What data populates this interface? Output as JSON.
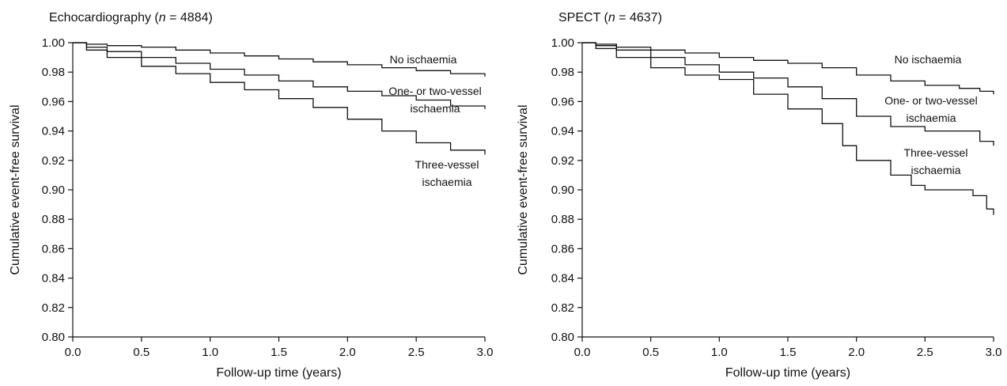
{
  "chart_data": [
    {
      "type": "line",
      "title_parts": [
        "Echocardiography (",
        "n",
        " = 4884)"
      ],
      "xlabel": "Follow-up time (years)",
      "ylabel": "Cumulative event-free survival",
      "xlim": [
        0,
        3
      ],
      "ylim": [
        0.8,
        1.0
      ],
      "x_ticks": [
        "0.0",
        "0.5",
        "1.0",
        "1.5",
        "2.0",
        "2.5",
        "3.0"
      ],
      "y_ticks": [
        "0.80",
        "0.82",
        "0.84",
        "0.86",
        "0.88",
        "0.90",
        "0.92",
        "0.94",
        "0.96",
        "0.98",
        "1.00"
      ],
      "grid": false,
      "series": [
        {
          "label_lines": [
            "No ischaemia"
          ],
          "points": [
            [
              0,
              1.0
            ],
            [
              0.1,
              0.999
            ],
            [
              0.25,
              0.998
            ],
            [
              0.5,
              0.997
            ],
            [
              0.75,
              0.995
            ],
            [
              1.0,
              0.993
            ],
            [
              1.25,
              0.991
            ],
            [
              1.5,
              0.989
            ],
            [
              1.75,
              0.987
            ],
            [
              2.0,
              0.985
            ],
            [
              2.25,
              0.983
            ],
            [
              2.5,
              0.981
            ],
            [
              2.75,
              0.979
            ],
            [
              3.0,
              0.977
            ]
          ]
        },
        {
          "label_lines": [
            "One- or two-vessel",
            "ischaemia"
          ],
          "points": [
            [
              0,
              1.0
            ],
            [
              0.1,
              0.997
            ],
            [
              0.25,
              0.994
            ],
            [
              0.5,
              0.99
            ],
            [
              0.75,
              0.986
            ],
            [
              1.0,
              0.982
            ],
            [
              1.25,
              0.978
            ],
            [
              1.5,
              0.974
            ],
            [
              1.75,
              0.97
            ],
            [
              2.0,
              0.967
            ],
            [
              2.25,
              0.964
            ],
            [
              2.5,
              0.961
            ],
            [
              2.75,
              0.957
            ],
            [
              3.0,
              0.955
            ]
          ]
        },
        {
          "label_lines": [
            "Three-vessel",
            "ischaemia"
          ],
          "points": [
            [
              0,
              1.0
            ],
            [
              0.1,
              0.995
            ],
            [
              0.25,
              0.99
            ],
            [
              0.5,
              0.984
            ],
            [
              0.75,
              0.979
            ],
            [
              1.0,
              0.973
            ],
            [
              1.25,
              0.968
            ],
            [
              1.5,
              0.962
            ],
            [
              1.75,
              0.956
            ],
            [
              2.0,
              0.948
            ],
            [
              2.25,
              0.94
            ],
            [
              2.5,
              0.932
            ],
            [
              2.75,
              0.927
            ],
            [
              3.0,
              0.924
            ]
          ]
        }
      ]
    },
    {
      "type": "line",
      "title_parts": [
        "SPECT (",
        "n",
        " = 4637)"
      ],
      "xlabel": "Follow-up time (years)",
      "ylabel": "Cumulative event-free survival",
      "xlim": [
        0,
        3
      ],
      "ylim": [
        0.8,
        1.0
      ],
      "x_ticks": [
        "0.0",
        "0.5",
        "1.0",
        "1.5",
        "2.0",
        "2.5",
        "3.0"
      ],
      "y_ticks": [
        "0.80",
        "0.82",
        "0.84",
        "0.86",
        "0.88",
        "0.90",
        "0.92",
        "0.94",
        "0.96",
        "0.98",
        "1.00"
      ],
      "grid": false,
      "series": [
        {
          "label_lines": [
            "No ischaemia"
          ],
          "points": [
            [
              0,
              1.0
            ],
            [
              0.1,
              0.999
            ],
            [
              0.25,
              0.997
            ],
            [
              0.5,
              0.995
            ],
            [
              0.75,
              0.993
            ],
            [
              1.0,
              0.99
            ],
            [
              1.25,
              0.988
            ],
            [
              1.5,
              0.986
            ],
            [
              1.75,
              0.983
            ],
            [
              2.0,
              0.978
            ],
            [
              2.25,
              0.974
            ],
            [
              2.5,
              0.971
            ],
            [
              2.75,
              0.969
            ],
            [
              2.9,
              0.967
            ],
            [
              3.0,
              0.965
            ]
          ]
        },
        {
          "label_lines": [
            "One- or two-vessel",
            "ischaemia"
          ],
          "points": [
            [
              0,
              1.0
            ],
            [
              0.1,
              0.998
            ],
            [
              0.25,
              0.995
            ],
            [
              0.5,
              0.99
            ],
            [
              0.75,
              0.985
            ],
            [
              1.0,
              0.98
            ],
            [
              1.25,
              0.976
            ],
            [
              1.5,
              0.97
            ],
            [
              1.75,
              0.962
            ],
            [
              2.0,
              0.95
            ],
            [
              2.25,
              0.943
            ],
            [
              2.5,
              0.94
            ],
            [
              2.75,
              0.94
            ],
            [
              2.9,
              0.933
            ],
            [
              3.0,
              0.93
            ]
          ]
        },
        {
          "label_lines": [
            "Three-vessel",
            "ischaemia"
          ],
          "points": [
            [
              0,
              1.0
            ],
            [
              0.1,
              0.996
            ],
            [
              0.25,
              0.99
            ],
            [
              0.5,
              0.983
            ],
            [
              0.75,
              0.978
            ],
            [
              1.0,
              0.975
            ],
            [
              1.25,
              0.965
            ],
            [
              1.5,
              0.955
            ],
            [
              1.75,
              0.945
            ],
            [
              1.9,
              0.93
            ],
            [
              2.0,
              0.92
            ],
            [
              2.25,
              0.91
            ],
            [
              2.4,
              0.903
            ],
            [
              2.5,
              0.9
            ],
            [
              2.75,
              0.9
            ],
            [
              2.85,
              0.896
            ],
            [
              2.95,
              0.887
            ],
            [
              3.0,
              0.883
            ]
          ]
        }
      ]
    }
  ]
}
